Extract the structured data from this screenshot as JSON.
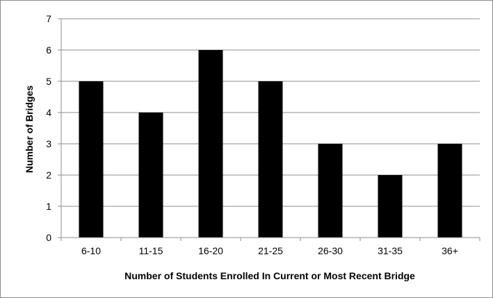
{
  "chart_data": {
    "type": "bar",
    "categories": [
      "6-10",
      "11-15",
      "16-20",
      "21-25",
      "26-30",
      "31-35",
      "36+"
    ],
    "values": [
      5,
      4,
      6,
      5,
      3,
      2,
      3
    ],
    "title": "",
    "xlabel": "Number of Students Enrolled In Current or Most Recent Bridge",
    "ylabel": "Number of Bridges",
    "ylim": [
      0,
      7
    ],
    "yticks": [
      0,
      1,
      2,
      3,
      4,
      5,
      6,
      7
    ],
    "grid": true,
    "legend": "none",
    "bar_color": "#000000",
    "grid_color": "#8c8c8c"
  }
}
